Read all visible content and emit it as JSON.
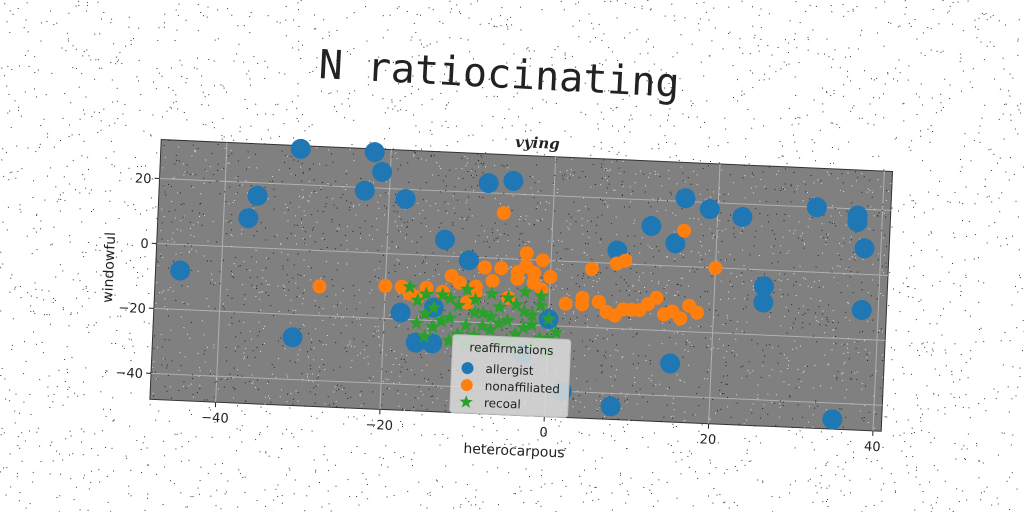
{
  "page_title": "N ratiocinating",
  "chart_data": {
    "type": "scatter",
    "title": "vying",
    "xlabel": "heterocarpous",
    "ylabel": "windowful",
    "xlim": [
      -48,
      41
    ],
    "ylim": [
      -48,
      32
    ],
    "xticks": [
      -40,
      -20,
      0,
      20,
      40
    ],
    "yticks": [
      -40,
      -20,
      0,
      20
    ],
    "grid": true,
    "legend": {
      "title": "reaffirmations",
      "placement": "lower center"
    },
    "background_color": "#808080",
    "series": [
      {
        "name": "allergist",
        "marker": "circle",
        "color": "#1f77b4",
        "points": [
          [
            -45,
            -8
          ],
          [
            -37,
            9
          ],
          [
            -36,
            16
          ],
          [
            -31,
            31
          ],
          [
            -23,
            19
          ],
          [
            -22,
            31
          ],
          [
            -21,
            25
          ],
          [
            -18,
            17
          ],
          [
            -18,
            -18
          ],
          [
            -16,
            -27
          ],
          [
            -14,
            -27
          ],
          [
            -13,
            5
          ],
          [
            -14,
            -16
          ],
          [
            -10,
            -1
          ],
          [
            -8,
            23
          ],
          [
            -5,
            24
          ],
          [
            -3,
            -29
          ],
          [
            0,
            -18
          ],
          [
            2,
            -40
          ],
          [
            8,
            4
          ],
          [
            8,
            -44
          ],
          [
            12,
            12
          ],
          [
            15,
            7
          ],
          [
            16,
            21
          ],
          [
            15,
            -30
          ],
          [
            16,
            -55
          ],
          [
            19,
            18
          ],
          [
            23,
            16
          ],
          [
            26,
            -5
          ],
          [
            26,
            -10
          ],
          [
            26,
            -53
          ],
          [
            32,
            20
          ],
          [
            35,
            -45
          ],
          [
            37,
            18
          ],
          [
            37,
            16
          ],
          [
            38,
            8
          ],
          [
            38,
            -11
          ],
          [
            -12,
            -49
          ],
          [
            -31,
            -27
          ]
        ]
      },
      {
        "name": "nonaffiliated",
        "marker": "circle",
        "color": "#ff7f0e",
        "points": [
          [
            -28,
            -11
          ],
          [
            -20,
            -10
          ],
          [
            -18,
            -10
          ],
          [
            -17,
            -12
          ],
          [
            -15,
            -10
          ],
          [
            -13,
            -11
          ],
          [
            -12,
            -6
          ],
          [
            -11,
            -8
          ],
          [
            -10,
            -14
          ],
          [
            -9,
            -9
          ],
          [
            -8,
            -3
          ],
          [
            -7,
            -7
          ],
          [
            -6,
            -3
          ],
          [
            -5,
            -12
          ],
          [
            -4,
            -6
          ],
          [
            -3,
            2
          ],
          [
            -3,
            -2
          ],
          [
            -2,
            -4
          ],
          [
            -1,
            0
          ],
          [
            -1,
            -9
          ],
          [
            0,
            -5
          ],
          [
            2,
            -13
          ],
          [
            4,
            -13
          ],
          [
            5,
            -2
          ],
          [
            6,
            -12
          ],
          [
            8,
            0
          ],
          [
            9,
            1
          ],
          [
            7,
            -15
          ],
          [
            8,
            -16
          ],
          [
            9,
            -14
          ],
          [
            10,
            -14
          ],
          [
            11,
            -14
          ],
          [
            12,
            -12
          ],
          [
            13,
            -10
          ],
          [
            14,
            -15
          ],
          [
            15,
            -14
          ],
          [
            16,
            -16
          ],
          [
            17,
            -12
          ],
          [
            18,
            -14
          ],
          [
            8,
            -16
          ],
          [
            4,
            -11
          ],
          [
            -6,
            14
          ],
          [
            16,
            11
          ],
          [
            20,
            0
          ],
          [
            -2,
            -7
          ],
          [
            -4,
            -4
          ],
          [
            -9,
            -11
          ],
          [
            -16,
            -13
          ]
        ]
      },
      {
        "name": "recoal",
        "marker": "star",
        "color": "#2ca02c",
        "points": [
          [
            -17,
            -10
          ],
          [
            -16,
            -14
          ],
          [
            -15,
            -18
          ],
          [
            -14,
            -22
          ],
          [
            -15,
            -25
          ],
          [
            -13,
            -12
          ],
          [
            -12,
            -19
          ],
          [
            -12,
            -26
          ],
          [
            -11,
            -15
          ],
          [
            -10,
            -10
          ],
          [
            -10,
            -21
          ],
          [
            -9,
            -24
          ],
          [
            -9,
            -13
          ],
          [
            -8,
            -17
          ],
          [
            -8,
            -28
          ],
          [
            -7,
            -11
          ],
          [
            -7,
            -22
          ],
          [
            -6,
            -15
          ],
          [
            -6,
            -26
          ],
          [
            -5,
            -19
          ],
          [
            -5,
            -12
          ],
          [
            -4,
            -23
          ],
          [
            -4,
            -28
          ],
          [
            -3,
            -16
          ],
          [
            -3,
            -10
          ],
          [
            -2,
            -20
          ],
          [
            -2,
            -26
          ],
          [
            -1,
            -14
          ],
          [
            -1,
            -24
          ],
          [
            0,
            -18
          ],
          [
            0,
            -28
          ],
          [
            1,
            -22
          ],
          [
            -16,
            -21
          ],
          [
            -14,
            -16
          ],
          [
            -11,
            -24
          ],
          [
            -7,
            -18
          ],
          [
            -3,
            -21
          ],
          [
            -1,
            -11
          ],
          [
            -13,
            -20
          ],
          [
            -12,
            -13
          ],
          [
            -9,
            -17
          ],
          [
            -6,
            -20
          ],
          [
            -4,
            -14
          ],
          [
            -2,
            -17
          ],
          [
            -8,
            -21
          ],
          [
            -5,
            -25
          ],
          [
            -10,
            -27
          ],
          [
            -15,
            -12
          ],
          [
            0,
            -24
          ]
        ]
      }
    ]
  }
}
